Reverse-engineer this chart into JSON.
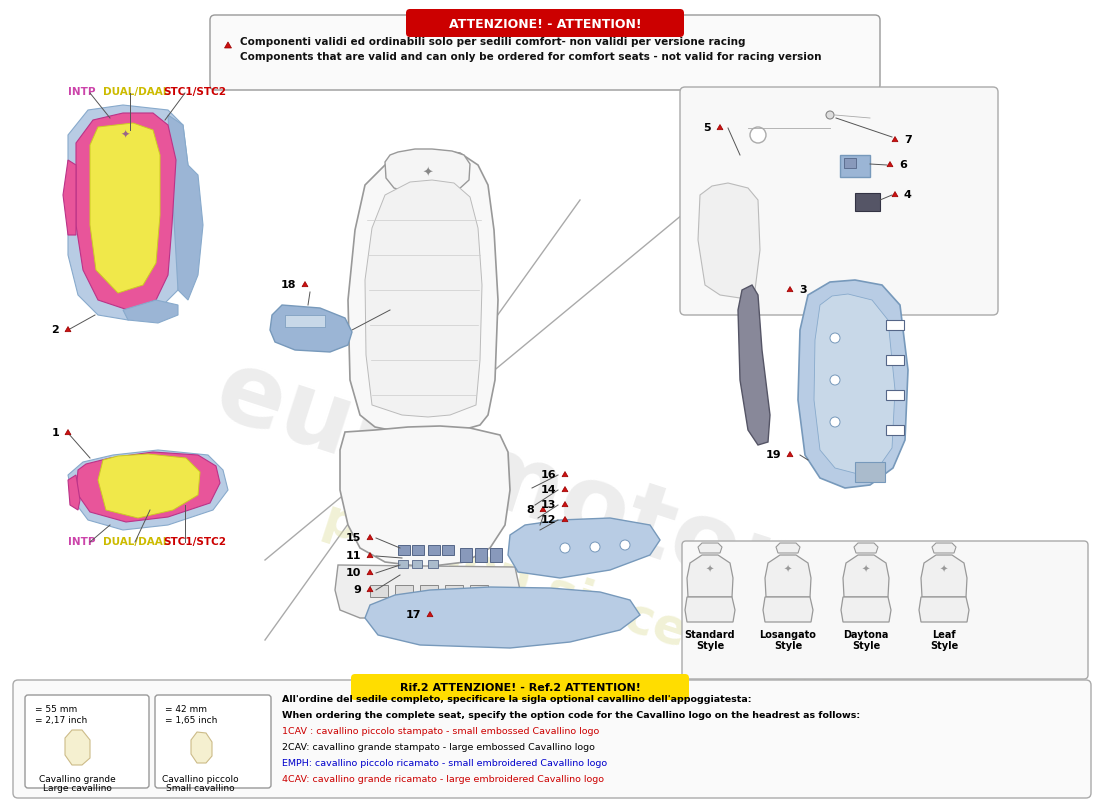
{
  "bg_color": "#ffffff",
  "attention_box": {
    "title": "ATTENZIONE! - ATTENTION!",
    "title_bg": "#cc0000",
    "title_color": "#ffffff",
    "text_line1": "Componenti validi ed ordinabili solo per sedili comfort- non validi per versione racing",
    "text_line2": "Components that are valid and can only be ordered for comfort seats - not valid for racing version"
  },
  "legend_labels": {
    "intp": "INTP",
    "dual": "DUAL/DAAL",
    "stc": "STC1/STC2",
    "intp_color": "#cc44aa",
    "dual_color": "#ccbb00",
    "stc_color": "#cc0000"
  },
  "ref2_box": {
    "title": "Rif.2 ATTENZIONE! - Ref.2 ATTENTION!",
    "title_bg": "#ffdd00",
    "title_color": "#000000",
    "text": [
      "All'ordine del sedile completo, specificare la sigla optional cavallino dell'appoggiatesta:",
      "When ordering the complete seat, specify the option code for the Cavallino logo on the headrest as follows:",
      "1CAV : cavallino piccolo stampato - small embossed Cavallino logo",
      "2CAV: cavallino grande stampato - large embossed Cavallino logo",
      "EMPH: cavallino piccolo ricamato - small embroidered Cavallino logo",
      "4CAV: cavallino grande ricamato - large embroidered Cavallino logo"
    ],
    "text_colors": [
      "#000000",
      "#000000",
      "#cc0000",
      "#000000",
      "#0000cc",
      "#cc0000"
    ],
    "cav_grande_mm": "= 55 mm",
    "cav_grande_inch": "= 2,17 inch",
    "cav_grande_label1": "Cavallino grande",
    "cav_grande_label2": "Large cavallino",
    "cav_piccolo_mm": "= 42 mm",
    "cav_piccolo_inch": "= 1,65 inch",
    "cav_piccolo_label1": "Cavallino piccolo",
    "cav_piccolo_label2": "Small cavallino"
  },
  "seat_styles": [
    "Standard\nStyle",
    "Losangato\nStyle",
    "Daytona\nStyle",
    "Leaf\nStyle"
  ],
  "colors": {
    "pink": "#e8559a",
    "yellow": "#f0e84a",
    "light_blue": "#9bb5d5",
    "light_blue2": "#b8cce4",
    "outline": "#777777",
    "seat_fill": "#f5f5f5",
    "seat_line": "#999999",
    "red": "#cc0000"
  }
}
